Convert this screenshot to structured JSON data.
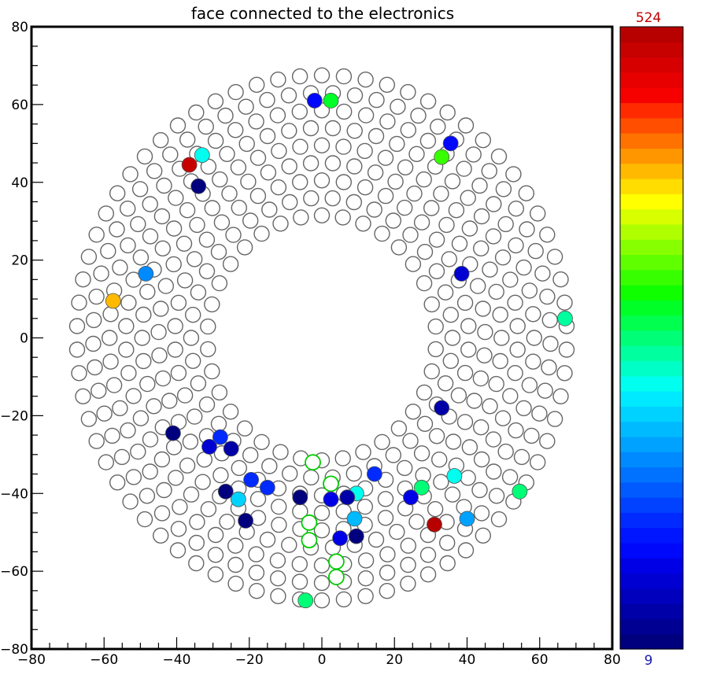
{
  "chart_data": {
    "type": "scatter",
    "title": "face connected to the electronics",
    "xlim": [
      -80,
      80
    ],
    "ylim": [
      -80,
      80
    ],
    "x_ticks": [
      -80,
      -60,
      -40,
      -20,
      0,
      20,
      40,
      60,
      80
    ],
    "y_ticks": [
      -80,
      -60,
      -40,
      -20,
      0,
      20,
      40,
      60,
      80
    ],
    "x_tick_labels": [
      "−80",
      "−60",
      "−40",
      "−20",
      "0",
      "20",
      "40",
      "60",
      "80"
    ],
    "y_tick_labels": [
      "−80",
      "−60",
      "−40",
      "−20",
      "0",
      "20",
      "40",
      "60",
      "80"
    ],
    "colorbar": {
      "min": 9,
      "max": 524,
      "min_label": "9",
      "max_label": "524",
      "colors": [
        "#00007f",
        "#000093",
        "#0000a8",
        "#0000bd",
        "#0000d2",
        "#0000e6",
        "#0008fb",
        "#0016ff",
        "#002aff",
        "#0042ff",
        "#005aff",
        "#0072ff",
        "#008aff",
        "#00a2ff",
        "#00baff",
        "#00d2ff",
        "#00eaff",
        "#00ffee",
        "#00ffc6",
        "#00ff9e",
        "#00ff76",
        "#00ff4e",
        "#00ff26",
        "#10ff00",
        "#38ff00",
        "#60ff00",
        "#88ff00",
        "#b0ff00",
        "#d8ff00",
        "#ffff00",
        "#ffdd00",
        "#ffba00",
        "#ff9600",
        "#ff7200",
        "#ff4e00",
        "#ff2a00",
        "#f70000",
        "#e70000",
        "#d70000",
        "#c70000",
        "#b70000"
      ]
    },
    "rings": [
      {
        "radius": 67.5,
        "count": 70
      },
      {
        "radius": 63.0,
        "count": 65
      },
      {
        "radius": 58.5,
        "count": 60
      },
      {
        "radius": 54.0,
        "count": 56
      },
      {
        "radius": 49.5,
        "count": 52
      },
      {
        "radius": 45.0,
        "count": 47
      },
      {
        "radius": 40.5,
        "count": 42
      },
      {
        "radius": 36.0,
        "count": 38
      },
      {
        "radius": 31.5,
        "count": 34
      }
    ],
    "empty_color": "#666666",
    "highlighted_outline": [
      {
        "x": -2.5,
        "y": -32
      },
      {
        "x": 2.5,
        "y": -37.5
      },
      {
        "x": -3.5,
        "y": -47.5
      },
      {
        "x": -3.5,
        "y": -52
      },
      {
        "x": 4,
        "y": -57.5
      },
      {
        "x": 4,
        "y": -61.5
      }
    ],
    "highlight_outline_color": "#00cc00",
    "points": [
      {
        "x": -2,
        "y": 61,
        "value": 90
      },
      {
        "x": 2.5,
        "y": 61,
        "value": 290
      },
      {
        "x": -33,
        "y": 47,
        "value": 230
      },
      {
        "x": -36.5,
        "y": 44.5,
        "value": 500
      },
      {
        "x": 35.5,
        "y": 50,
        "value": 90
      },
      {
        "x": 33,
        "y": 46.5,
        "value": 320
      },
      {
        "x": -34,
        "y": 39,
        "value": 20
      },
      {
        "x": 38.5,
        "y": 16.5,
        "value": 70
      },
      {
        "x": -48.5,
        "y": 16.5,
        "value": 160
      },
      {
        "x": -57.5,
        "y": 9.5,
        "value": 410
      },
      {
        "x": 67,
        "y": 5,
        "value": 250
      },
      {
        "x": 33,
        "y": -18,
        "value": 40
      },
      {
        "x": -41,
        "y": -24.5,
        "value": 15
      },
      {
        "x": -28,
        "y": -25.5,
        "value": 110
      },
      {
        "x": -31,
        "y": -28,
        "value": 70
      },
      {
        "x": -25,
        "y": -28.5,
        "value": 40
      },
      {
        "x": 14.5,
        "y": -35,
        "value": 110
      },
      {
        "x": 36.5,
        "y": -35.5,
        "value": 230
      },
      {
        "x": -19.5,
        "y": -36.5,
        "value": 110
      },
      {
        "x": -15,
        "y": -38.5,
        "value": 120
      },
      {
        "x": 27.5,
        "y": -38.5,
        "value": 270
      },
      {
        "x": 54.5,
        "y": -39.5,
        "value": 270
      },
      {
        "x": -26.5,
        "y": -39.5,
        "value": 15
      },
      {
        "x": 9.5,
        "y": -40,
        "value": 230
      },
      {
        "x": -23,
        "y": -41.5,
        "value": 200
      },
      {
        "x": -6,
        "y": -41,
        "value": 15
      },
      {
        "x": 2.5,
        "y": -41.5,
        "value": 80
      },
      {
        "x": 7,
        "y": -41,
        "value": 40
      },
      {
        "x": 24.5,
        "y": -41,
        "value": 80
      },
      {
        "x": -21,
        "y": -47,
        "value": 20
      },
      {
        "x": 9,
        "y": -46.5,
        "value": 190
      },
      {
        "x": 40,
        "y": -46.5,
        "value": 180
      },
      {
        "x": 31,
        "y": -48,
        "value": 520
      },
      {
        "x": 5,
        "y": -51.5,
        "value": 80
      },
      {
        "x": 9.5,
        "y": -51,
        "value": 20
      },
      {
        "x": -4.5,
        "y": -67.5,
        "value": 270
      }
    ]
  }
}
